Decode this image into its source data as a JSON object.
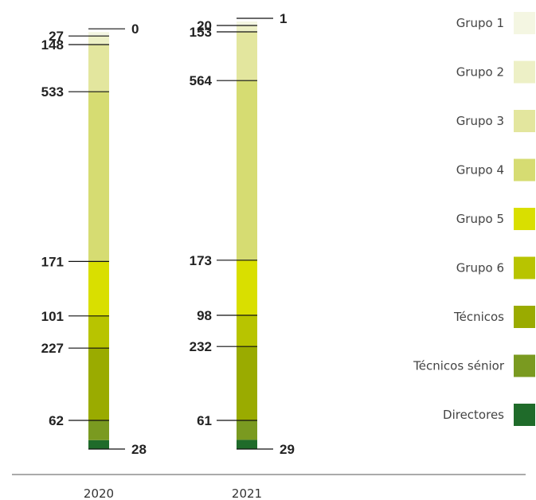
{
  "chart_data": {
    "type": "stacked-bar",
    "categories": [
      "2020",
      "2021"
    ],
    "series": [
      {
        "name": "Grupo 1",
        "values": [
          0,
          1
        ],
        "color": "#f4f6e2"
      },
      {
        "name": "Grupo 2",
        "values": [
          27,
          20
        ],
        "color": "#edf0c6"
      },
      {
        "name": "Grupo 3",
        "values": [
          148,
          153
        ],
        "color": "#e3e69e"
      },
      {
        "name": "Grupo 4",
        "values": [
          533,
          564
        ],
        "color": "#d6dc72"
      },
      {
        "name": "Grupo 5",
        "values": [
          171,
          173
        ],
        "color": "#d9df00"
      },
      {
        "name": "Grupo 6",
        "values": [
          101,
          98
        ],
        "color": "#b8c400"
      },
      {
        "name": "Técnicos",
        "values": [
          227,
          232
        ],
        "color": "#9aab00"
      },
      {
        "name": "Técnicos sénior",
        "values": [
          62,
          61
        ],
        "color": "#7a9a20"
      },
      {
        "name": "Directores",
        "values": [
          28,
          29
        ],
        "color": "#1f6b2a"
      }
    ]
  }
}
